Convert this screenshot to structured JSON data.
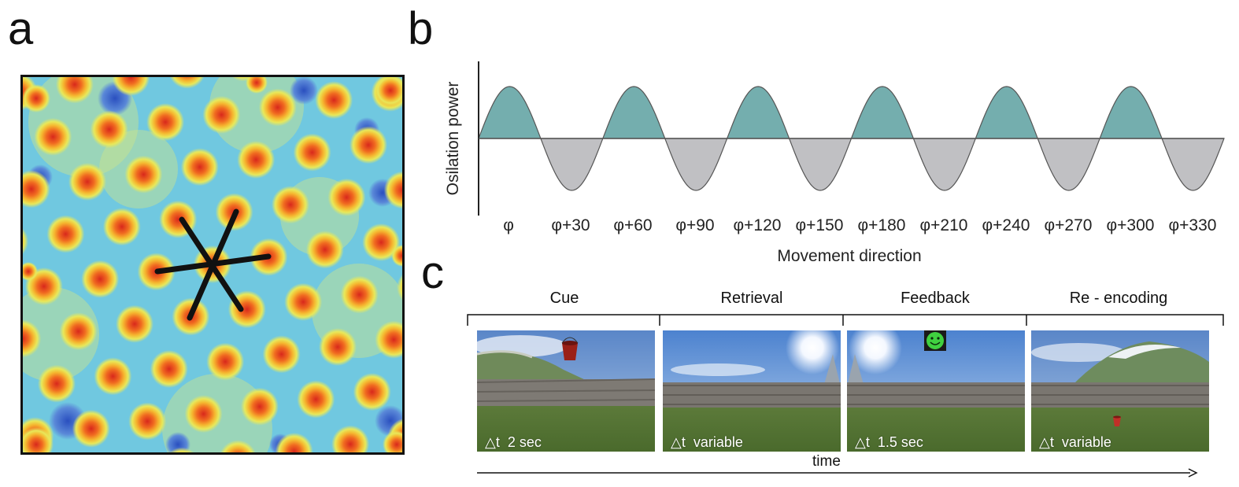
{
  "panels": {
    "a": {
      "letter": "a"
    },
    "b": {
      "letter": "b",
      "chart_data": {
        "type": "area",
        "ylabel": "Osilation power",
        "xlabel": "Movement direction",
        "categories": [
          "φ",
          "φ+30",
          "φ+60",
          "φ+90",
          "φ+120",
          "φ+150",
          "φ+180",
          "φ+210",
          "φ+240",
          "φ+270",
          "φ+300",
          "φ+330"
        ],
        "series": [
          {
            "values": [
              1,
              -1,
              1,
              -1,
              1,
              -1,
              1,
              -1,
              1,
              -1,
              1,
              -1
            ]
          }
        ],
        "period_deg": 60,
        "colors": {
          "positive": "#74aeae",
          "negative": "#c0c0c3",
          "line": "#555555"
        }
      }
    },
    "c": {
      "letter": "c",
      "phases": [
        {
          "label": "Cue",
          "duration": "△t  2 sec"
        },
        {
          "label": "Retrieval",
          "duration": "△t  variable"
        },
        {
          "label": "Feedback",
          "duration": "△t  1.5 sec"
        },
        {
          "label": "Re - encoding",
          "duration": "△t  variable"
        }
      ],
      "time_label": "time"
    }
  }
}
